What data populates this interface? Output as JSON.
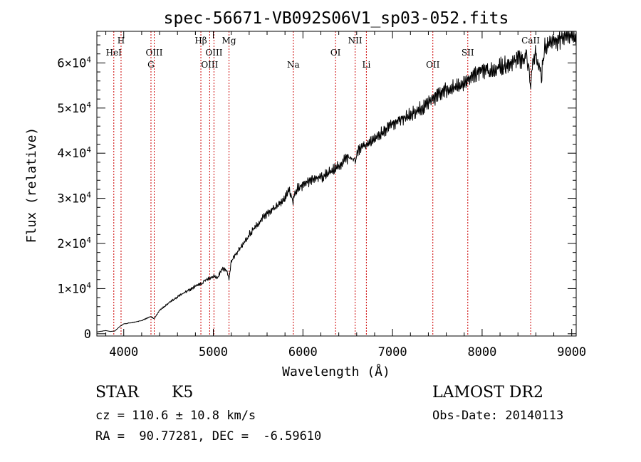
{
  "chart_data": {
    "type": "line",
    "title": "spec-56671-VB092S06V1_sp03-052.fits",
    "xlabel": "Wavelength (Å)",
    "ylabel": "Flux (relative)",
    "xlim": [
      3700,
      9050
    ],
    "ylim": [
      -500,
      67000
    ],
    "x_ticks": [
      4000,
      5000,
      6000,
      7000,
      8000,
      9000
    ],
    "x_tick_labels": [
      "4000",
      "5000",
      "6000",
      "7000",
      "8000",
      "9000"
    ],
    "y_ticks": [
      0,
      10000,
      20000,
      30000,
      40000,
      50000,
      60000
    ],
    "y_tick_labels": [
      {
        "mant": "0",
        "exp": ""
      },
      {
        "mant": "1×10",
        "exp": "4"
      },
      {
        "mant": "2×10",
        "exp": "4"
      },
      {
        "mant": "3×10",
        "exp": "4"
      },
      {
        "mant": "4×10",
        "exp": "4"
      },
      {
        "mant": "5×10",
        "exp": "4"
      },
      {
        "mant": "6×10",
        "exp": "4"
      }
    ],
    "grid": false,
    "line_color": "#000000",
    "marker_color": "#cc0000",
    "series": [
      {
        "x": [
          3700,
          3800,
          3850,
          3900,
          3950,
          4000,
          4100,
          4200,
          4300,
          4340,
          4400,
          4500,
          4600,
          4700,
          4800,
          4861,
          4900,
          4950,
          5000,
          5050,
          5100,
          5150,
          5175,
          5200,
          5300,
          5400,
          5500,
          5600,
          5700,
          5800,
          5850,
          5890,
          5900,
          5950,
          6000,
          6100,
          6200,
          6300,
          6400,
          6500,
          6563,
          6600,
          6700,
          6800,
          6900,
          7000,
          7100,
          7200,
          7300,
          7400,
          7500,
          7600,
          7700,
          7800,
          7900,
          8000,
          8100,
          8200,
          8300,
          8400,
          8450,
          8500,
          8542,
          8560,
          8600,
          8662,
          8700,
          8800,
          8900,
          9000,
          9050
        ],
        "y": [
          400,
          700,
          500,
          600,
          1500,
          2200,
          2500,
          2900,
          3800,
          3300,
          5200,
          6800,
          8200,
          9300,
          10500,
          11000,
          11800,
          12300,
          12800,
          12500,
          14500,
          13800,
          12000,
          16000,
          19000,
          22000,
          24500,
          26500,
          28000,
          30000,
          31800,
          29500,
          31000,
          32500,
          32800,
          34000,
          34500,
          36000,
          37300,
          39000,
          37500,
          40000,
          42000,
          43500,
          45000,
          46500,
          47500,
          48700,
          49800,
          51000,
          52500,
          54000,
          54800,
          55800,
          57000,
          58000,
          58500,
          59200,
          59800,
          61000,
          60500,
          61500,
          55000,
          60500,
          62000,
          57000,
          63500,
          64500,
          65500,
          66200,
          66000
        ]
      }
    ],
    "lines": [
      {
        "label": "HeI",
        "x": 3889,
        "row": 1
      },
      {
        "label": "H",
        "x": 3970,
        "row": 0
      },
      {
        "label": "OIII",
        "x": 4340,
        "row": 1
      },
      {
        "label": "G",
        "x": 4304,
        "row": 2
      },
      {
        "label": "Hβ",
        "x": 4861,
        "row": 0
      },
      {
        "label": "OIII",
        "x": 4959,
        "row": 2
      },
      {
        "label": "OIII",
        "x": 5007,
        "row": 1
      },
      {
        "label": "Mg",
        "x": 5175,
        "row": 0
      },
      {
        "label": "Na",
        "x": 5893,
        "row": 2
      },
      {
        "label": "OI",
        "x": 6364,
        "row": 1
      },
      {
        "label": "NII",
        "x": 6583,
        "row": 0
      },
      {
        "label": "Li",
        "x": 6708,
        "row": 2
      },
      {
        "label": "OII",
        "x": 7450,
        "row": 2
      },
      {
        "label": "SII",
        "x": 7840,
        "row": 1
      },
      {
        "label": "CaII",
        "x": 8542,
        "row": 0
      }
    ]
  },
  "info": {
    "object_class": "STAR",
    "subclass": "K5",
    "survey": "LAMOST DR2",
    "cz": "cz = 110.6 ± 10.8 km/s",
    "obs_date": "Obs-Date: 20140113",
    "coords": "RA =  90.77281, DEC =  -6.59610"
  }
}
